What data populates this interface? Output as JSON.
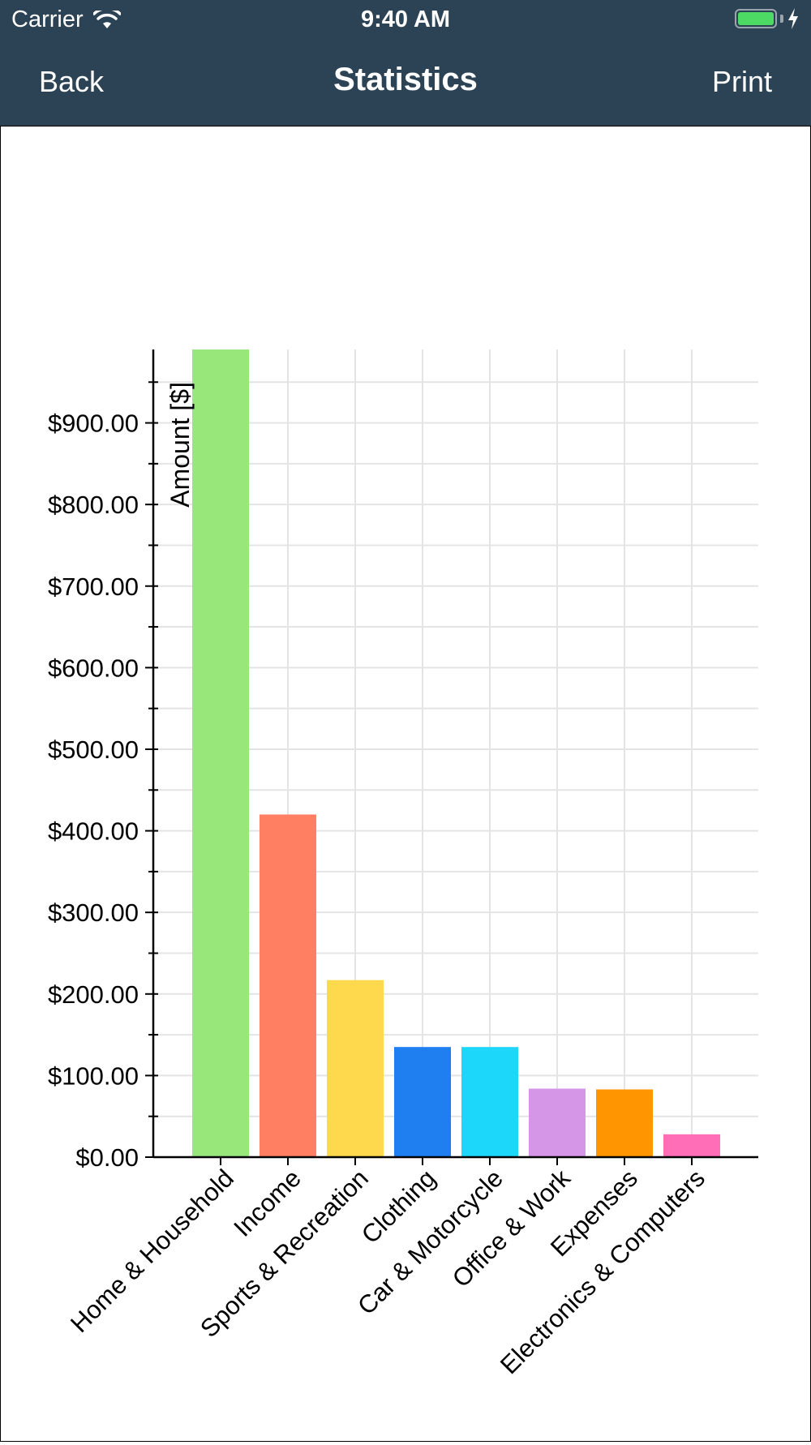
{
  "status_bar": {
    "carrier": "Carrier",
    "time": "9:40 AM",
    "battery_level": 1.0,
    "battery_color": "#4cd964",
    "icons": [
      "wifi-icon",
      "battery-icon",
      "charging-bolt-icon"
    ]
  },
  "nav": {
    "back_label": "Back",
    "title": "Statistics",
    "print_label": "Print",
    "background": "#2c4355"
  },
  "chart_data": {
    "type": "bar",
    "title": "",
    "xlabel": "",
    "ylabel": "Amount [$]",
    "ylim": [
      0,
      990
    ],
    "yticks": [
      0,
      100,
      200,
      300,
      400,
      500,
      600,
      700,
      800,
      900
    ],
    "ytick_labels": [
      "$0.00",
      "$100.00",
      "$200.00",
      "$300.00",
      "$400.00",
      "$500.00",
      "$600.00",
      "$700.00",
      "$800.00",
      "$900.00"
    ],
    "minor_ytick_step": 50,
    "grid": true,
    "legend": "none",
    "categories": [
      "Home & Household",
      "Income",
      "Sports & Recreation",
      "Clothing",
      "Car & Motorcycle",
      "Office & Work",
      "Expenses",
      "Electronics & Computers"
    ],
    "values": [
      995,
      420,
      217,
      135,
      135,
      84,
      83,
      28
    ],
    "colors": [
      "#97e77a",
      "#ff7f62",
      "#ffd94d",
      "#1f7ff1",
      "#1dd7fa",
      "#d696e8",
      "#ff9500",
      "#ff6eb6"
    ]
  }
}
